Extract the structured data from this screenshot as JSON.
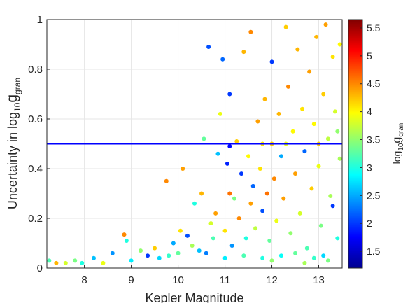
{
  "chart_data": {
    "type": "scatter",
    "title": "",
    "xlabel": "Kepler Magnitude",
    "ylabel": {
      "prefix": "Uncertainty in log",
      "sub1": "10",
      "main": "g",
      "sub2": "gran"
    },
    "xlim": [
      7.2,
      13.5
    ],
    "ylim": [
      0,
      1
    ],
    "x_ticks": [
      8,
      9,
      10,
      11,
      12,
      13
    ],
    "y_ticks": [
      0,
      0.2,
      0.4,
      0.6,
      0.8,
      1
    ],
    "x_tick_labels": [
      "8",
      "9",
      "10",
      "11",
      "12",
      "13"
    ],
    "y_tick_labels": [
      "0",
      "0.2",
      "0.4",
      "0.6",
      "0.8",
      "1"
    ],
    "grid": true,
    "threshold_line": {
      "y": 0.5,
      "color": "#0000ff"
    },
    "colorbar": {
      "label": {
        "prefix": "log",
        "sub1": "10",
        "main": "g",
        "sub2": "gran"
      },
      "range": [
        1.2,
        5.65
      ],
      "ticks": [
        1.5,
        2,
        2.5,
        3,
        3.5,
        4,
        4.5,
        5,
        5.5
      ],
      "tick_labels": [
        "1.5",
        "2",
        "2.5",
        "3",
        "3.5",
        "4",
        "4.5",
        "5",
        "5.5"
      ],
      "colormap": "jet"
    },
    "points": [
      [
        7.25,
        0.03,
        3.2
      ],
      [
        7.4,
        0.02,
        4.3
      ],
      [
        7.6,
        0.02,
        3.8
      ],
      [
        7.8,
        0.03,
        3.4
      ],
      [
        7.95,
        0.02,
        3.0
      ],
      [
        8.2,
        0.04,
        2.6
      ],
      [
        8.4,
        0.02,
        3.9
      ],
      [
        8.6,
        0.06,
        2.4
      ],
      [
        8.85,
        0.135,
        4.5
      ],
      [
        8.9,
        0.11,
        3.0
      ],
      [
        9.0,
        0.03,
        2.8
      ],
      [
        9.2,
        0.07,
        3.5
      ],
      [
        9.35,
        0.05,
        2.0
      ],
      [
        9.5,
        0.08,
        4.2
      ],
      [
        9.6,
        0.04,
        2.7
      ],
      [
        9.75,
        0.35,
        4.5
      ],
      [
        9.8,
        0.05,
        3.1
      ],
      [
        9.9,
        0.1,
        2.5
      ],
      [
        10.0,
        0.06,
        3.3
      ],
      [
        10.05,
        0.15,
        4.1
      ],
      [
        10.1,
        0.4,
        4.4
      ],
      [
        10.2,
        0.13,
        2.1
      ],
      [
        10.3,
        0.09,
        3.6
      ],
      [
        10.35,
        0.26,
        3.0
      ],
      [
        10.45,
        0.07,
        2.6
      ],
      [
        10.5,
        0.3,
        4.3
      ],
      [
        10.55,
        0.52,
        3.3
      ],
      [
        10.6,
        0.06,
        2.3
      ],
      [
        10.65,
        0.89,
        2.1
      ],
      [
        10.7,
        0.18,
        3.8
      ],
      [
        10.75,
        0.12,
        3.2
      ],
      [
        10.8,
        0.22,
        4.4
      ],
      [
        10.85,
        0.46,
        2.6
      ],
      [
        10.9,
        0.62,
        3.9
      ],
      [
        10.95,
        0.84,
        2.2
      ],
      [
        11.0,
        0.15,
        4.1
      ],
      [
        11.05,
        0.42,
        1.9
      ],
      [
        11.1,
        0.3,
        4.6
      ],
      [
        11.1,
        0.7,
        2.0
      ],
      [
        11.15,
        0.09,
        2.4
      ],
      [
        11.2,
        0.28,
        3.4
      ],
      [
        11.25,
        0.51,
        4.2
      ],
      [
        11.3,
        0.2,
        4.5
      ],
      [
        11.35,
        0.38,
        2.0
      ],
      [
        11.4,
        0.87,
        4.3
      ],
      [
        11.45,
        0.12,
        3.0
      ],
      [
        11.5,
        0.45,
        4.0
      ],
      [
        11.55,
        0.26,
        4.4
      ],
      [
        11.55,
        0.95,
        4.5
      ],
      [
        11.6,
        0.33,
        2.2
      ],
      [
        11.65,
        0.16,
        3.7
      ],
      [
        11.7,
        0.59,
        4.4
      ],
      [
        11.75,
        0.4,
        4.1
      ],
      [
        11.8,
        0.23,
        2.1
      ],
      [
        11.85,
        0.68,
        4.3
      ],
      [
        11.9,
        0.3,
        4.6
      ],
      [
        11.95,
        0.11,
        3.3
      ],
      [
        12.0,
        0.5,
        4.2
      ],
      [
        12.0,
        0.83,
        2.0
      ],
      [
        12.05,
        0.36,
        4.5
      ],
      [
        12.1,
        0.19,
        3.9
      ],
      [
        12.15,
        0.62,
        4.3
      ],
      [
        12.2,
        0.45,
        2.5
      ],
      [
        12.25,
        0.28,
        4.4
      ],
      [
        12.3,
        0.97,
        4.2
      ],
      [
        12.35,
        0.73,
        4.5
      ],
      [
        12.4,
        0.14,
        3.5
      ],
      [
        12.45,
        0.55,
        4.0
      ],
      [
        12.5,
        0.38,
        4.4
      ],
      [
        12.55,
        0.88,
        4.3
      ],
      [
        12.6,
        0.22,
        3.8
      ],
      [
        12.65,
        0.64,
        4.1
      ],
      [
        12.7,
        0.47,
        2.2
      ],
      [
        12.75,
        0.08,
        3.2
      ],
      [
        12.8,
        0.79,
        4.4
      ],
      [
        12.85,
        0.32,
        4.2
      ],
      [
        12.9,
        0.58,
        4.0
      ],
      [
        12.95,
        0.93,
        4.3
      ],
      [
        13.0,
        0.41,
        3.9
      ],
      [
        13.05,
        0.17,
        3.4
      ],
      [
        13.1,
        0.7,
        4.2
      ],
      [
        13.15,
        0.98,
        4.4
      ],
      [
        13.2,
        0.52,
        3.7
      ],
      [
        13.25,
        0.29,
        3.6
      ],
      [
        13.3,
        0.85,
        4.1
      ],
      [
        13.35,
        0.63,
        3.8
      ],
      [
        13.4,
        0.12,
        3.0
      ],
      [
        13.45,
        0.44,
        3.6
      ],
      [
        13.1,
        0.05,
        2.7
      ],
      [
        12.9,
        0.04,
        3.1
      ],
      [
        12.5,
        0.06,
        3.3
      ],
      [
        12.2,
        0.05,
        2.9
      ],
      [
        11.8,
        0.04,
        3.0
      ],
      [
        11.4,
        0.05,
        3.2
      ],
      [
        11.0,
        0.04,
        2.8
      ],
      [
        12.7,
        0.02,
        3.6
      ],
      [
        13.2,
        0.03,
        3.4
      ],
      [
        12.0,
        0.03,
        3.5
      ],
      [
        13.45,
        0.9,
        4.0
      ],
      [
        13.3,
        0.25,
        2.0
      ],
      [
        11.1,
        0.49,
        1.8
      ],
      [
        11.8,
        0.5,
        4.1
      ],
      [
        12.3,
        0.5,
        3.9
      ],
      [
        13.0,
        0.5,
        4.2
      ],
      [
        13.4,
        0.55,
        3.5
      ]
    ]
  }
}
